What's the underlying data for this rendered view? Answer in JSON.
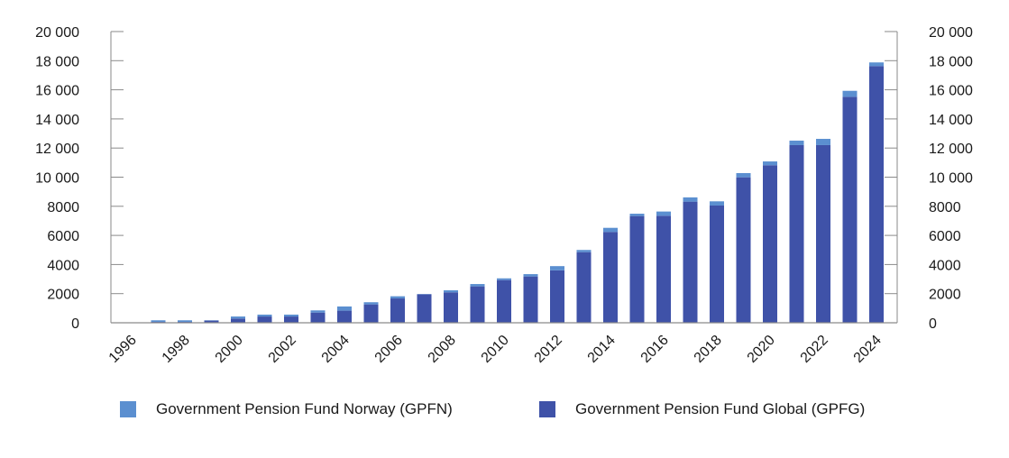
{
  "chart_data": {
    "type": "bar",
    "stacked": true,
    "title": "",
    "xlabel": "",
    "ylabel": "",
    "ylim": [
      0,
      20000
    ],
    "y_ticks": [
      0,
      2000,
      4000,
      6000,
      8000,
      10000,
      12000,
      14000,
      16000,
      18000,
      20000
    ],
    "y_tick_labels": [
      "0",
      "2000",
      "4000",
      "6000",
      "8000",
      "10 000",
      "12 000",
      "14 000",
      "16 000",
      "18 000",
      "20 000"
    ],
    "secondary_y_axis": true,
    "grid": false,
    "categories": [
      "1996",
      "1997",
      "1998",
      "1999",
      "2000",
      "2001",
      "2002",
      "2003",
      "2004",
      "2005",
      "2006",
      "2007",
      "2008",
      "2009",
      "2010",
      "2011",
      "2012",
      "2013",
      "2014",
      "2015",
      "2016",
      "2017",
      "2018",
      "2019",
      "2020",
      "2021",
      "2022",
      "2023",
      "2024"
    ],
    "x_tick_labels": [
      "1996",
      "1998",
      "2000",
      "2002",
      "2004",
      "2006",
      "2008",
      "2010",
      "2012",
      "2014",
      "2016",
      "2018",
      "2020",
      "2022",
      "2024"
    ],
    "series": [
      {
        "name": "Government Pension Fund Global (GPFG)",
        "color": "#3f52a8",
        "values": [
          0,
          60,
          60,
          150,
          290,
          430,
          430,
          700,
          830,
          1260,
          1670,
          1950,
          2090,
          2500,
          2930,
          3180,
          3600,
          4850,
          6240,
          7330,
          7350,
          8320,
          8050,
          9990,
          10820,
          12200,
          12200,
          15520,
          17630
        ]
      },
      {
        "name": "Government Pension Fund Norway (GPFN)",
        "color": "#5b8fd0",
        "values": [
          0,
          110,
          110,
          20,
          140,
          130,
          130,
          150,
          290,
          150,
          150,
          20,
          140,
          160,
          120,
          160,
          290,
          150,
          280,
          160,
          290,
          290,
          290,
          290,
          260,
          310,
          430,
          410,
          250
        ]
      }
    ],
    "legend": {
      "position": "bottom",
      "entries": [
        {
          "label": "Government Pension Fund Norway (GPFN)",
          "color": "#5b8fd0"
        },
        {
          "label": "Government Pension Fund Global (GPFG)",
          "color": "#3f52a8"
        }
      ]
    }
  }
}
